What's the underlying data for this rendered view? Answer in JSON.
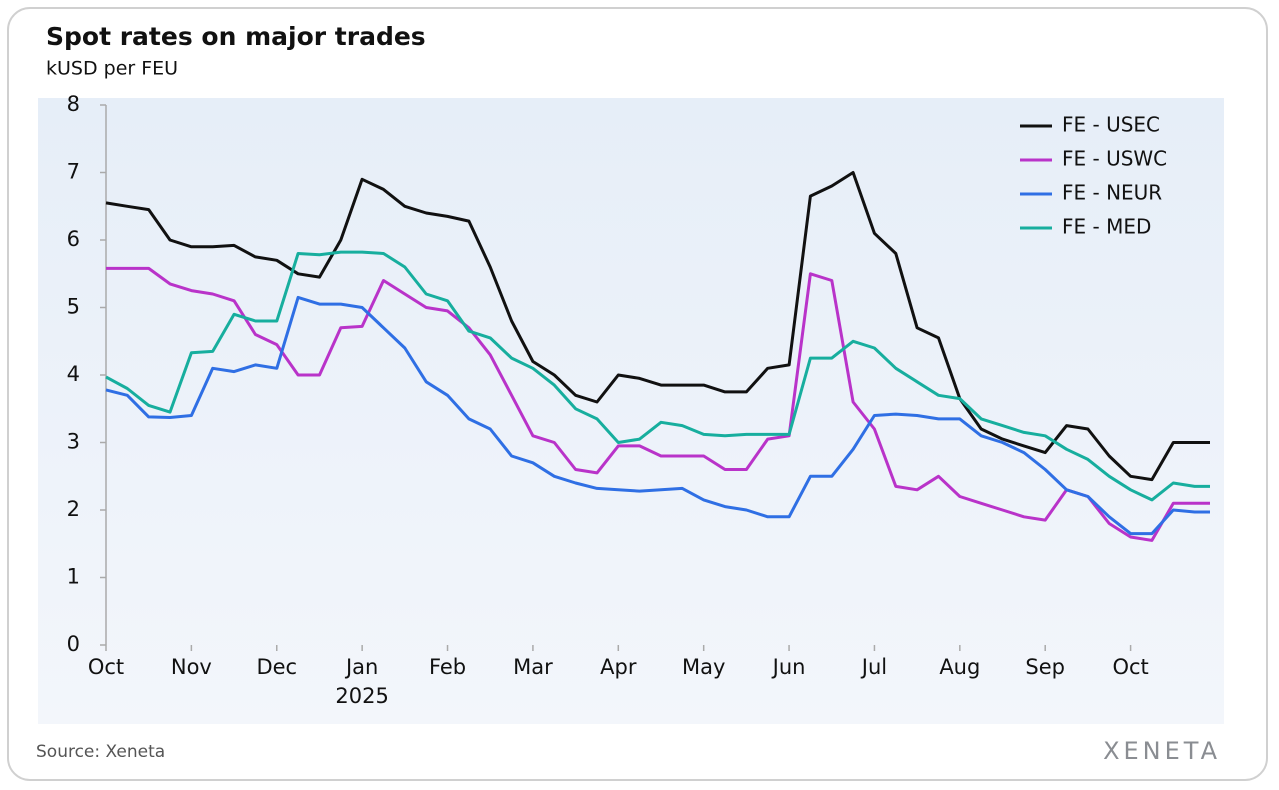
{
  "chart_data": {
    "type": "line",
    "title": "Spot rates on major trades",
    "subtitle": "kUSD per FEU",
    "source": "Source: Xeneta",
    "logo": "XENETA",
    "legend": "upper right",
    "x": [
      0,
      0.25,
      0.5,
      0.75,
      1,
      1.25,
      1.5,
      1.75,
      2,
      2.25,
      2.5,
      2.75,
      3,
      3.25,
      3.5,
      3.75,
      4,
      4.25,
      4.5,
      4.75,
      5,
      5.25,
      5.5,
      5.75,
      6,
      6.25,
      6.5,
      6.75,
      7,
      7.25,
      7.5,
      7.75,
      8,
      8.25,
      8.5,
      8.75,
      9,
      9.25,
      9.5,
      9.75,
      10,
      10.25,
      10.5,
      10.75,
      11,
      11.25,
      11.5,
      11.75,
      12,
      12.25,
      12.5,
      12.75,
      12.93
    ],
    "xlim": [
      0,
      12.93
    ],
    "xticks": [
      {
        "value": 0,
        "label": "Oct"
      },
      {
        "value": 1,
        "label": "Nov"
      },
      {
        "value": 2,
        "label": "Dec"
      },
      {
        "value": 3,
        "label": "Jan",
        "sublabel": "2025"
      },
      {
        "value": 4,
        "label": "Feb"
      },
      {
        "value": 5,
        "label": "Mar"
      },
      {
        "value": 6,
        "label": "Apr"
      },
      {
        "value": 7,
        "label": "May"
      },
      {
        "value": 8,
        "label": "Jun"
      },
      {
        "value": 9,
        "label": "Jul"
      },
      {
        "value": 10,
        "label": "Aug"
      },
      {
        "value": 11,
        "label": "Sep"
      },
      {
        "value": 12,
        "label": "Oct"
      }
    ],
    "ylim": [
      0,
      8
    ],
    "yticks": [
      0,
      1,
      2,
      3,
      4,
      5,
      6,
      7,
      8
    ],
    "series": [
      {
        "name": "FE - USEC",
        "color": "#111111",
        "values": [
          6.55,
          6.5,
          6.45,
          6.0,
          5.9,
          5.9,
          5.92,
          5.75,
          5.7,
          5.5,
          5.45,
          6.0,
          6.9,
          6.75,
          6.5,
          6.4,
          6.35,
          6.28,
          5.6,
          4.8,
          4.2,
          4.0,
          3.7,
          3.6,
          4.0,
          3.95,
          3.85,
          3.85,
          3.85,
          3.75,
          3.75,
          4.1,
          4.15,
          6.65,
          6.8,
          7.0,
          6.1,
          5.8,
          4.7,
          4.55,
          3.65,
          3.2,
          3.05,
          2.95,
          2.85,
          3.25,
          3.2,
          2.8,
          2.5,
          2.45,
          3.0,
          3.0,
          3.0
        ]
      },
      {
        "name": "FE - USWC",
        "color": "#b933c9",
        "values": [
          5.58,
          5.58,
          5.58,
          5.35,
          5.25,
          5.2,
          5.1,
          4.6,
          4.45,
          4.0,
          4.0,
          4.7,
          4.72,
          5.4,
          5.2,
          5.0,
          4.95,
          4.7,
          4.3,
          3.7,
          3.1,
          3.0,
          2.6,
          2.55,
          2.95,
          2.95,
          2.8,
          2.8,
          2.8,
          2.6,
          2.6,
          3.05,
          3.1,
          5.5,
          5.4,
          3.6,
          3.2,
          2.35,
          2.3,
          2.5,
          2.2,
          2.1,
          2.0,
          1.9,
          1.85,
          2.3,
          2.2,
          1.8,
          1.6,
          1.55,
          2.1,
          2.1,
          2.1
        ]
      },
      {
        "name": "FE - NEUR",
        "color": "#2f6fe4",
        "values": [
          3.78,
          3.7,
          3.38,
          3.37,
          3.4,
          4.1,
          4.05,
          4.15,
          4.1,
          5.15,
          5.05,
          5.05,
          5.0,
          4.7,
          4.4,
          3.9,
          3.7,
          3.35,
          3.2,
          2.8,
          2.7,
          2.5,
          2.4,
          2.32,
          2.3,
          2.28,
          2.3,
          2.32,
          2.15,
          2.05,
          2.0,
          1.9,
          1.9,
          2.5,
          2.5,
          2.9,
          3.4,
          3.42,
          3.4,
          3.35,
          3.35,
          3.1,
          3.0,
          2.85,
          2.6,
          2.3,
          2.2,
          1.9,
          1.65,
          1.65,
          2.0,
          1.97,
          1.97
        ]
      },
      {
        "name": "FE - MED",
        "color": "#17ae9e",
        "values": [
          3.97,
          3.8,
          3.55,
          3.45,
          4.33,
          4.35,
          4.9,
          4.8,
          4.8,
          5.8,
          5.78,
          5.82,
          5.82,
          5.8,
          5.6,
          5.2,
          5.1,
          4.65,
          4.55,
          4.25,
          4.1,
          3.85,
          3.5,
          3.35,
          3.0,
          3.05,
          3.3,
          3.25,
          3.12,
          3.1,
          3.12,
          3.12,
          3.12,
          4.25,
          4.25,
          4.5,
          4.4,
          4.1,
          3.9,
          3.7,
          3.65,
          3.35,
          3.25,
          3.15,
          3.1,
          2.9,
          2.75,
          2.5,
          2.3,
          2.15,
          2.4,
          2.35,
          2.35
        ]
      }
    ]
  }
}
